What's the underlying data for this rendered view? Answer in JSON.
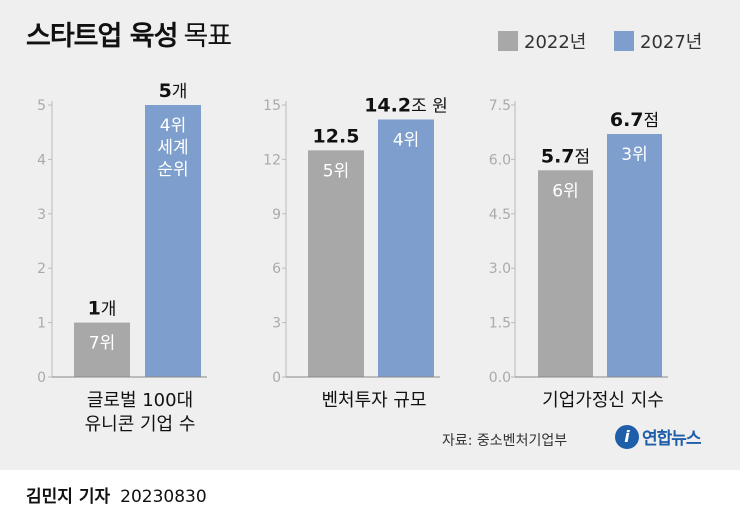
{
  "title": {
    "bold": "스타트업 육성",
    "rest": "목표"
  },
  "legend": [
    {
      "label": "2022년",
      "color": "#a8a8a8"
    },
    {
      "label": "2027년",
      "color": "#7e9fcd"
    }
  ],
  "chart_data": [
    {
      "type": "bar",
      "category": "글로벌 100대 유니콘 기업 수",
      "category_lines": [
        "글로벌 100대",
        "유니콘 기업 수"
      ],
      "ylim": [
        0,
        5
      ],
      "ticks": [
        "0",
        "1",
        "2",
        "3",
        "4",
        "5"
      ],
      "grid": true,
      "series": [
        {
          "name": "2022년",
          "value": 1,
          "top_label": "1",
          "unit": "개",
          "inner_labels": [
            "7위"
          ]
        },
        {
          "name": "2027년",
          "value": 5,
          "top_label": "5",
          "unit": "개",
          "inner_labels": [
            "4위",
            "세계",
            "순위"
          ]
        }
      ]
    },
    {
      "type": "bar",
      "category": "벤처투자 규모",
      "category_lines": [
        "벤처투자 규모"
      ],
      "ylim": [
        0,
        15
      ],
      "ticks": [
        "0",
        "3",
        "6",
        "9",
        "12",
        "15"
      ],
      "grid": true,
      "series": [
        {
          "name": "2022년",
          "value": 12.5,
          "top_label": "12.5",
          "unit": "",
          "inner_labels": [
            "5위"
          ]
        },
        {
          "name": "2027년",
          "value": 14.2,
          "top_label": "14.2",
          "unit": "조 원",
          "inner_labels": [
            "4위"
          ]
        }
      ]
    },
    {
      "type": "bar",
      "category": "기업가정신 지수",
      "category_lines": [
        "기업가정신 지수"
      ],
      "ylim": [
        0,
        7.5
      ],
      "ticks": [
        "0.0",
        "1.5",
        "3.0",
        "4.5",
        "6.0",
        "7.5"
      ],
      "grid": true,
      "series": [
        {
          "name": "2022년",
          "value": 5.7,
          "top_label": "5.7",
          "unit": "점",
          "inner_labels": [
            "6위"
          ]
        },
        {
          "name": "2027년",
          "value": 6.7,
          "top_label": "6.7",
          "unit": "점",
          "inner_labels": [
            "3위"
          ]
        }
      ]
    }
  ],
  "source": "자료: 중소벤처기업부",
  "logo": {
    "icon": "i",
    "text": "연합뉴스"
  },
  "footer": {
    "reporter": "김민지 기자",
    "date": "20230830"
  }
}
